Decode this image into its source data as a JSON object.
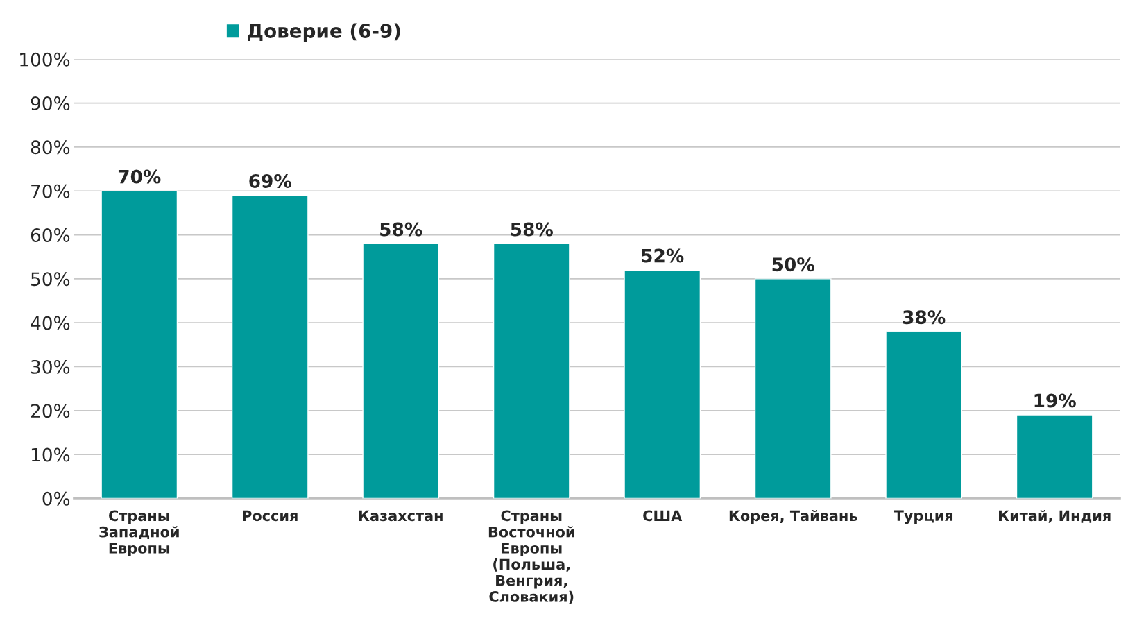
{
  "chart_data": {
    "type": "bar",
    "categories": [
      "Страны Западной Европы",
      "Россия",
      "Казахстан",
      "Страны Восточной Европы (Польша, Венгрия, Словакия)",
      "США",
      "Корея, Тайвань",
      "Турция",
      "Китай, Индия"
    ],
    "series": [
      {
        "name": "Доверие (6-9)",
        "color": "#009b9b",
        "values": [
          70,
          69,
          58,
          58,
          52,
          50,
          38,
          19
        ],
        "value_labels": [
          "70%",
          "69%",
          "58%",
          "58%",
          "52%",
          "50%",
          "38%",
          "19%"
        ]
      }
    ],
    "ylim": [
      0,
      100
    ],
    "yticks": [
      {
        "value": 0,
        "label": "0%"
      },
      {
        "value": 10,
        "label": "10%"
      },
      {
        "value": 20,
        "label": "20%"
      },
      {
        "value": 30,
        "label": "30%"
      },
      {
        "value": 40,
        "label": "40%"
      },
      {
        "value": 50,
        "label": "50%"
      },
      {
        "value": 60,
        "label": "60%"
      },
      {
        "value": 70,
        "label": "70%"
      },
      {
        "value": 80,
        "label": "80%"
      },
      {
        "value": 90,
        "label": "90%"
      },
      {
        "value": 100,
        "label": "100%"
      }
    ],
    "grid": "y",
    "legend": "top left"
  }
}
